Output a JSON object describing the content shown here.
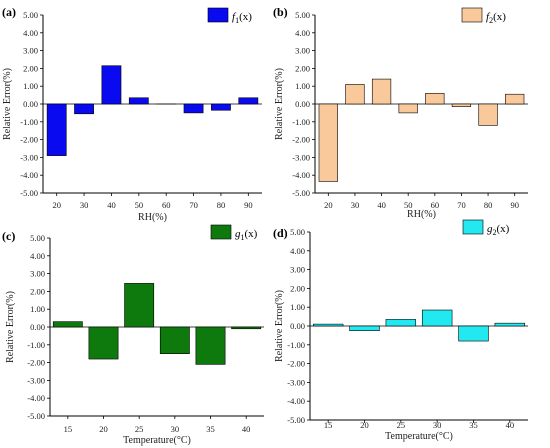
{
  "chart_data": [
    {
      "panel_label": "(a)",
      "type": "bar",
      "categories": [
        "20",
        "30",
        "40",
        "50",
        "60",
        "70",
        "80",
        "90"
      ],
      "values": [
        -2.9,
        -0.55,
        2.15,
        0.35,
        0.0,
        -0.5,
        -0.35,
        0.35
      ],
      "xlabel": "RH(%)",
      "ylabel": "Relative Error(%)",
      "ylim": [
        -5,
        5
      ],
      "yticks": [
        "-5.00",
        "-4.00",
        "-3.00",
        "-2.00",
        "-1.00",
        "0.00",
        "1.00",
        "2.00",
        "3.00",
        "4.00",
        "5.00"
      ],
      "legend": {
        "name": "f",
        "sub": "1",
        "arg": "(x)",
        "position": "top-right"
      },
      "color": "#0a0af0"
    },
    {
      "panel_label": "(b)",
      "type": "bar",
      "categories": [
        "20",
        "30",
        "40",
        "50",
        "60",
        "70",
        "80",
        "90"
      ],
      "values": [
        -4.35,
        1.1,
        1.4,
        -0.5,
        0.6,
        -0.15,
        -1.2,
        0.55
      ],
      "xlabel": "RH(%)",
      "ylabel": "Relative Error(%)",
      "ylim": [
        -5,
        5
      ],
      "yticks": [
        "-5.00",
        "-4.00",
        "-3.00",
        "-2.00",
        "-1.00",
        "0.00",
        "1.00",
        "2.00",
        "3.00",
        "4.00",
        "5.00"
      ],
      "legend": {
        "name": "f",
        "sub": "2",
        "arg": "(x)",
        "position": "top-right"
      },
      "color": "#f9c99b"
    },
    {
      "panel_label": "(c)",
      "type": "bar",
      "categories": [
        "15",
        "20",
        "25",
        "30",
        "35",
        "40"
      ],
      "values": [
        0.3,
        -1.8,
        2.45,
        -1.5,
        -2.1,
        -0.1
      ],
      "xlabel": "Temperature(°C)",
      "ylabel": "Relative Error(%)",
      "ylim": [
        -5,
        5
      ],
      "yticks": [
        "-5.00",
        "-4.00",
        "-3.00",
        "-2.00",
        "-1.00",
        "0.00",
        "1.00",
        "2.00",
        "3.00",
        "4.00",
        "5.00"
      ],
      "legend": {
        "name": "g",
        "sub": "1",
        "arg": "(x)",
        "position": "top-right"
      },
      "color": "#0e7a0e"
    },
    {
      "panel_label": "(d)",
      "type": "bar",
      "categories": [
        "15",
        "20",
        "25",
        "30",
        "35",
        "40"
      ],
      "values": [
        0.1,
        -0.25,
        0.35,
        0.85,
        -0.8,
        0.15
      ],
      "xlabel": "Temperature(°C)",
      "ylabel": "Relative Error(%)",
      "ylim": [
        -5,
        5
      ],
      "yticks": [
        "-5.00",
        "-4.00",
        "-3.00",
        "-2.00",
        "-1.00",
        "0.00",
        "1.00",
        "2.00",
        "3.00",
        "4.00",
        "5.00"
      ],
      "legend": {
        "name": "g",
        "sub": "2",
        "arg": "(x)",
        "position": "top-right"
      },
      "color": "#22e8f0"
    }
  ]
}
